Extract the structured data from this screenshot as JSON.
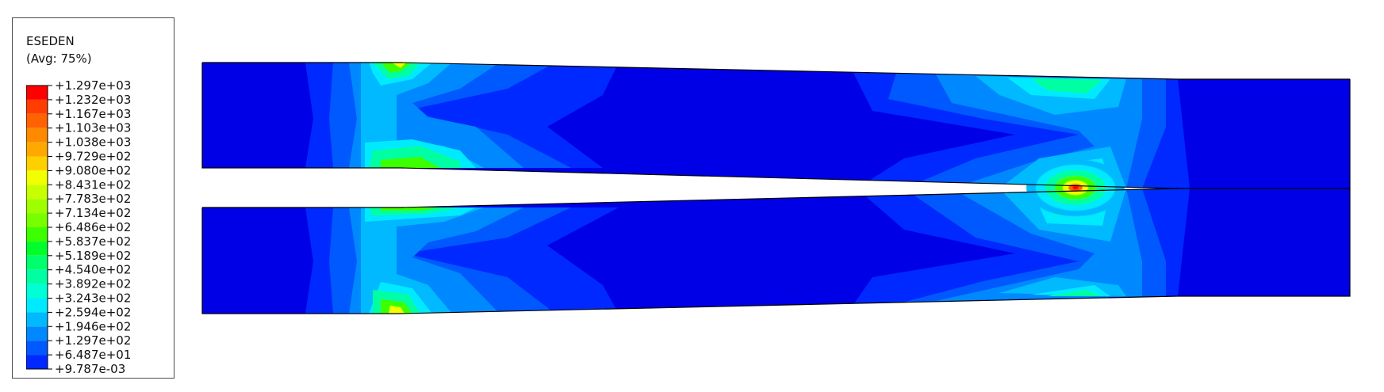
{
  "legend": {
    "title": "ESEDEN",
    "subtitle": "(Avg: 75%)",
    "levels": [
      {
        "label": "+1.297e+03",
        "color": "#ff0000"
      },
      {
        "label": "+1.232e+03",
        "color": "#ff3d00"
      },
      {
        "label": "+1.167e+03",
        "color": "#ff6200"
      },
      {
        "label": "+1.103e+03",
        "color": "#ff8a00"
      },
      {
        "label": "+1.038e+03",
        "color": "#ffa900"
      },
      {
        "label": "+9.729e+02",
        "color": "#ffd000"
      },
      {
        "label": "+9.080e+02",
        "color": "#f2ff00"
      },
      {
        "label": "+8.431e+02",
        "color": "#c8ff00"
      },
      {
        "label": "+7.783e+02",
        "color": "#9fff00"
      },
      {
        "label": "+7.134e+02",
        "color": "#77ff00"
      },
      {
        "label": "+6.486e+02",
        "color": "#3cff00"
      },
      {
        "label": "+5.837e+02",
        "color": "#00ff2a"
      },
      {
        "label": "+5.189e+02",
        "color": "#00ff6c"
      },
      {
        "label": "+4.540e+02",
        "color": "#00ffa2"
      },
      {
        "label": "+3.892e+02",
        "color": "#00ffd5"
      },
      {
        "label": "+3.243e+02",
        "color": "#00eaff"
      },
      {
        "label": "+2.594e+02",
        "color": "#00b9ff"
      },
      {
        "label": "+1.946e+02",
        "color": "#0089ff"
      },
      {
        "label": "+1.297e+02",
        "color": "#0059ff"
      },
      {
        "label": "+6.487e+01",
        "color": "#0029ff"
      },
      {
        "label": "+9.787e-03",
        "color": "#0000e6"
      }
    ]
  },
  "contour": {
    "colors": {
      "base": "#0000e6",
      "l1": "#0029ff",
      "l2": "#0059ff",
      "l3": "#0089ff",
      "l4": "#00b9ff",
      "l5": "#00eaff",
      "l6": "#00ffa2",
      "l7": "#3cff00",
      "l8": "#f2ff00",
      "l9": "#ff6200",
      "l10": "#ff0000"
    }
  }
}
